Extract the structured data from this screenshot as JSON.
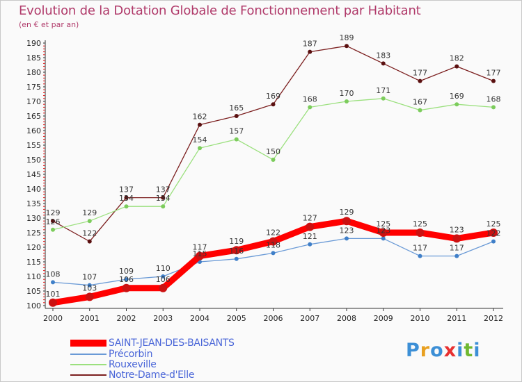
{
  "chart_data": {
    "type": "line",
    "title": "Evolution de la Dotation Globale de Fonctionnement par Habitant",
    "subtitle": "(en € et par an)",
    "xlabel": "",
    "ylabel": "",
    "ylim": [
      100,
      190
    ],
    "y_ticks": [
      100,
      105,
      110,
      115,
      120,
      125,
      130,
      135,
      140,
      145,
      150,
      155,
      160,
      165,
      170,
      175,
      180,
      185,
      190
    ],
    "categories": [
      "2000",
      "2001",
      "2002",
      "2003",
      "2004",
      "2005",
      "2006",
      "2007",
      "2008",
      "2009",
      "2010",
      "2011",
      "2012"
    ],
    "grid": false,
    "legend_position": "bottom-left",
    "series": [
      {
        "name": "Notre-Dame-d'Elle",
        "color": "#7b1e1e",
        "marker": "#5a1010",
        "values": [
          129,
          122,
          137,
          137,
          162,
          165,
          169,
          187,
          189,
          183,
          177,
          182,
          177
        ]
      },
      {
        "name": "Rouxeville",
        "color": "#9be07e",
        "marker": "#7ccc5c",
        "values": [
          126,
          129,
          134,
          134,
          154,
          157,
          150,
          168,
          170,
          171,
          167,
          169,
          168
        ]
      },
      {
        "name": "Précorbin",
        "color": "#6a9ad6",
        "marker": "#3f7fc8",
        "values": [
          108,
          107,
          109,
          110,
          115,
          116,
          118,
          121,
          123,
          123,
          117,
          117,
          122
        ]
      },
      {
        "name": "SAINT-JEAN-DES-BAISANTS",
        "color": "#ff0000",
        "marker": "#cc1111",
        "values": [
          101,
          103,
          106,
          106,
          117,
          119,
          122,
          127,
          129,
          125,
          125,
          123,
          125
        ]
      }
    ]
  },
  "legend": {
    "items": [
      {
        "label": "SAINT-JEAN-DES-BAISANTS",
        "color": "#ff0000"
      },
      {
        "label": "Précorbin",
        "color": "#6a9ad6"
      },
      {
        "label": "Rouxeville",
        "color": "#9be07e"
      },
      {
        "label": "Notre-Dame-d'Elle",
        "color": "#7b1e1e"
      }
    ]
  },
  "logo": {
    "letters": [
      "P",
      "r",
      "o",
      "x",
      "i",
      "t",
      "i"
    ],
    "colors": [
      "#3c8fd6",
      "#e8a020",
      "#3c8fd6",
      "#e83030",
      "#3c8fd6",
      "#70b830",
      "#3c8fd6"
    ]
  }
}
